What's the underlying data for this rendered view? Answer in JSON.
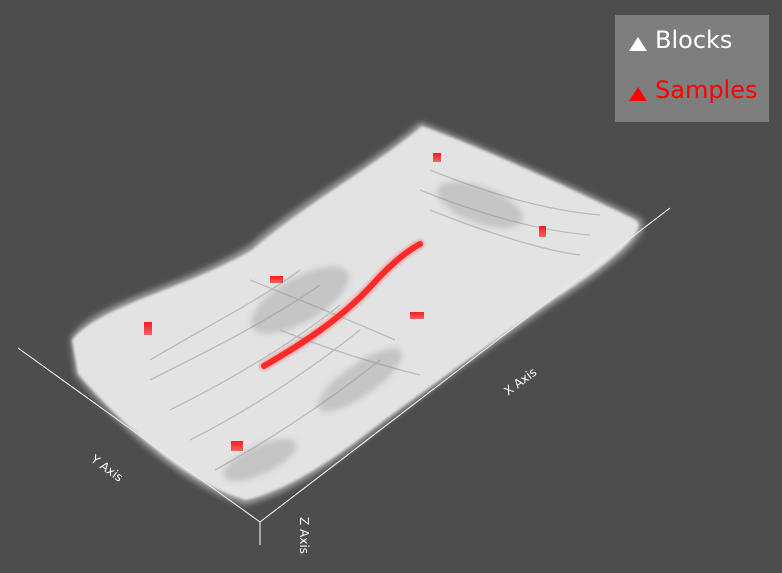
{
  "view": {
    "background_color": "#4d4d4d",
    "surface_color": "#ffffff",
    "sample_color": "#ff0000"
  },
  "axes": {
    "x_label": "X Axis",
    "y_label": "Y Axis",
    "z_label": "Z Axis",
    "line_color": "#ffffff"
  },
  "legend": {
    "background_color": "#7e7e7e",
    "entries": [
      {
        "label": "Blocks",
        "color": "#ffffff",
        "icon": "triangle-icon"
      },
      {
        "label": "Samples",
        "color": "#ff0000",
        "icon": "triangle-icon"
      }
    ]
  }
}
